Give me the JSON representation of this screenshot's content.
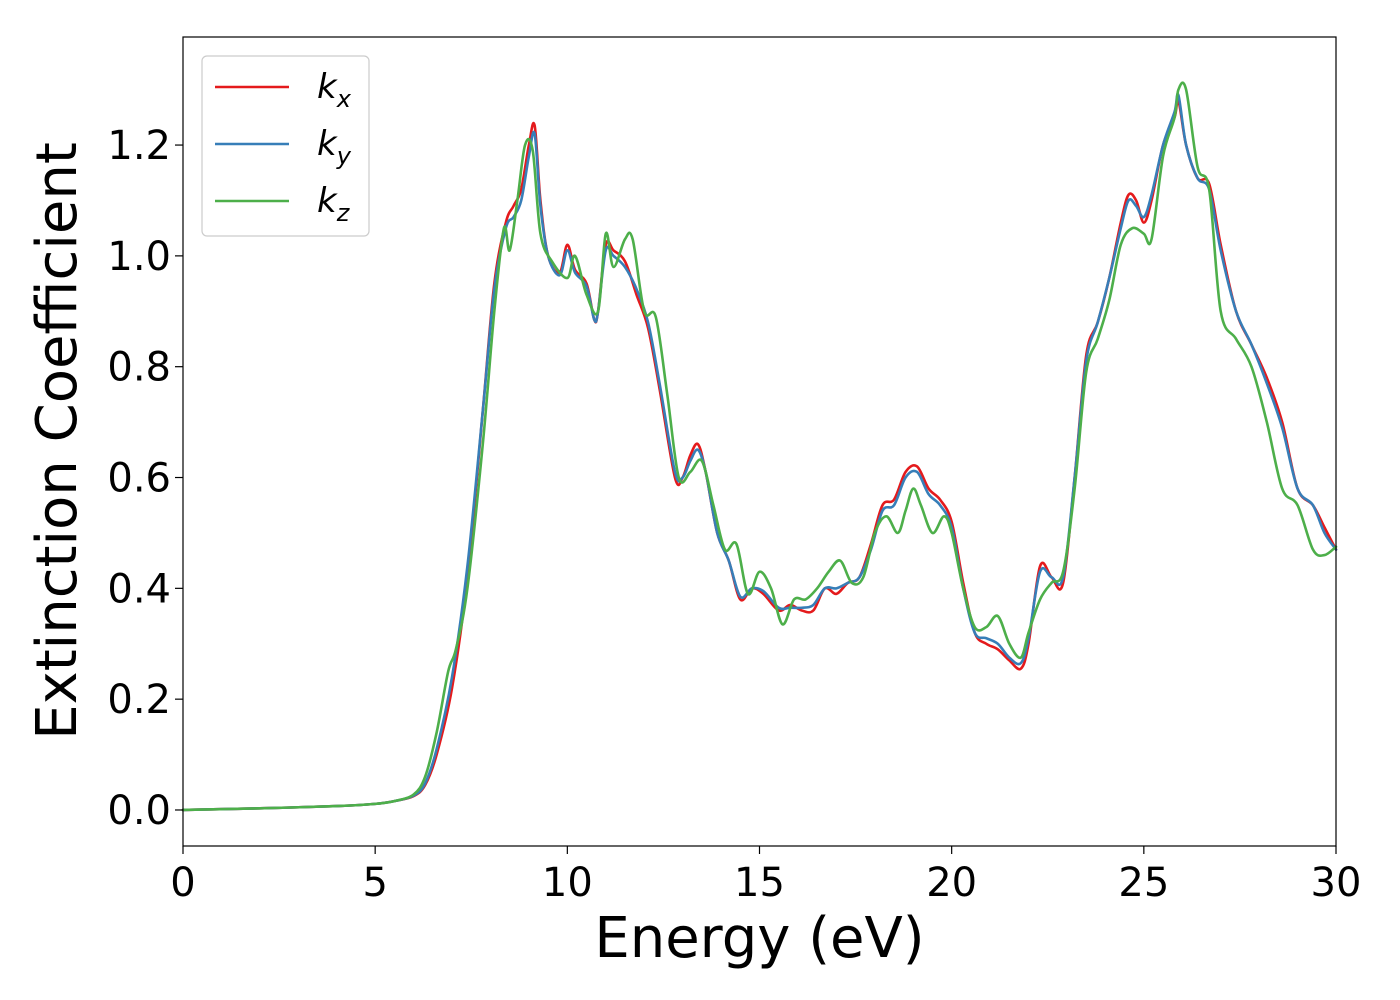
{
  "chart_data": {
    "type": "line",
    "title": "",
    "xlabel": "Energy (eV)",
    "ylabel": "Extinction Coefficient",
    "xlim": [
      0,
      30
    ],
    "ylim": [
      -0.065,
      1.395
    ],
    "xticks": [
      0,
      5,
      10,
      15,
      20,
      25,
      30
    ],
    "yticks": [
      0.0,
      0.2,
      0.4,
      0.6,
      0.8,
      1.0,
      1.2
    ],
    "xtick_labels": [
      "0",
      "5",
      "10",
      "15",
      "20",
      "25",
      "30"
    ],
    "ytick_labels": [
      "0.0",
      "0.2",
      "0.4",
      "0.6",
      "0.8",
      "1.0",
      "1.2"
    ],
    "grid": false,
    "legend_position": "top-left",
    "series": [
      {
        "name": "k_x",
        "label_base": "k",
        "label_sub": "x",
        "color": "#e41a1c",
        "x": [
          0,
          2,
          4,
          5,
          5.5,
          6,
          6.3,
          6.6,
          7.0,
          7.4,
          7.8,
          8.1,
          8.4,
          8.6,
          8.8,
          9.0,
          9.15,
          9.3,
          9.5,
          9.8,
          10.0,
          10.2,
          10.5,
          10.7,
          10.8,
          11.0,
          11.2,
          11.5,
          11.8,
          12.1,
          12.4,
          12.8,
          13.0,
          13.2,
          13.4,
          13.6,
          13.9,
          14.2,
          14.5,
          14.8,
          15.1,
          15.5,
          15.8,
          16.1,
          16.4,
          16.7,
          17.0,
          17.3,
          17.6,
          17.9,
          18.2,
          18.5,
          18.8,
          19.1,
          19.4,
          19.7,
          20.0,
          20.3,
          20.6,
          20.9,
          21.2,
          21.5,
          21.8,
          22.0,
          22.3,
          22.6,
          22.9,
          23.2,
          23.5,
          23.8,
          24.1,
          24.4,
          24.6,
          24.8,
          25.0,
          25.2,
          25.5,
          25.8,
          25.9,
          26.1,
          26.4,
          26.7,
          27.0,
          27.4,
          27.8,
          28.2,
          28.6,
          29.0,
          29.4,
          29.7,
          30.0
        ],
        "y": [
          0,
          0.003,
          0.007,
          0.011,
          0.016,
          0.025,
          0.045,
          0.1,
          0.22,
          0.42,
          0.72,
          0.95,
          1.06,
          1.09,
          1.12,
          1.2,
          1.235,
          1.1,
          1.0,
          0.97,
          1.02,
          0.975,
          0.95,
          0.885,
          0.9,
          1.02,
          1.01,
          0.99,
          0.93,
          0.87,
          0.76,
          0.6,
          0.6,
          0.64,
          0.66,
          0.61,
          0.5,
          0.45,
          0.38,
          0.4,
          0.39,
          0.36,
          0.37,
          0.36,
          0.36,
          0.4,
          0.39,
          0.41,
          0.42,
          0.48,
          0.55,
          0.56,
          0.61,
          0.62,
          0.58,
          0.56,
          0.52,
          0.41,
          0.32,
          0.3,
          0.29,
          0.27,
          0.255,
          0.3,
          0.44,
          0.42,
          0.41,
          0.6,
          0.82,
          0.88,
          0.96,
          1.06,
          1.11,
          1.1,
          1.06,
          1.1,
          1.2,
          1.25,
          1.28,
          1.2,
          1.14,
          1.13,
          1.02,
          0.9,
          0.84,
          0.78,
          0.7,
          0.58,
          0.55,
          0.51,
          0.47
        ]
      },
      {
        "name": "k_y",
        "label_base": "k",
        "label_sub": "y",
        "color": "#377eb8",
        "x": [
          0,
          2,
          4,
          5,
          5.5,
          6,
          6.3,
          6.6,
          7.0,
          7.4,
          7.8,
          8.1,
          8.4,
          8.6,
          8.8,
          9.0,
          9.15,
          9.3,
          9.5,
          9.8,
          10.0,
          10.2,
          10.5,
          10.7,
          10.8,
          11.0,
          11.2,
          11.5,
          11.8,
          12.1,
          12.4,
          12.8,
          13.0,
          13.2,
          13.4,
          13.6,
          13.9,
          14.2,
          14.5,
          14.8,
          15.1,
          15.5,
          15.8,
          16.1,
          16.4,
          16.7,
          17.0,
          17.3,
          17.6,
          17.9,
          18.2,
          18.5,
          18.8,
          19.1,
          19.4,
          19.7,
          20.0,
          20.3,
          20.6,
          20.9,
          21.2,
          21.5,
          21.8,
          22.0,
          22.3,
          22.6,
          22.9,
          23.2,
          23.5,
          23.8,
          24.1,
          24.4,
          24.6,
          24.8,
          25.0,
          25.2,
          25.5,
          25.8,
          25.9,
          26.1,
          26.4,
          26.7,
          27.0,
          27.4,
          27.8,
          28.2,
          28.6,
          29.0,
          29.4,
          29.7,
          30.0
        ],
        "y": [
          0,
          0.003,
          0.007,
          0.011,
          0.016,
          0.026,
          0.048,
          0.11,
          0.24,
          0.44,
          0.72,
          0.94,
          1.05,
          1.07,
          1.1,
          1.18,
          1.22,
          1.09,
          1.0,
          0.965,
          1.01,
          0.97,
          0.945,
          0.885,
          0.9,
          1.01,
          1.0,
          0.98,
          0.94,
          0.88,
          0.77,
          0.61,
          0.6,
          0.63,
          0.65,
          0.61,
          0.5,
          0.45,
          0.385,
          0.4,
          0.395,
          0.365,
          0.365,
          0.365,
          0.37,
          0.4,
          0.4,
          0.41,
          0.42,
          0.47,
          0.54,
          0.55,
          0.6,
          0.61,
          0.57,
          0.55,
          0.51,
          0.4,
          0.32,
          0.31,
          0.3,
          0.275,
          0.265,
          0.31,
          0.43,
          0.42,
          0.42,
          0.6,
          0.81,
          0.88,
          0.96,
          1.05,
          1.1,
          1.09,
          1.07,
          1.11,
          1.2,
          1.26,
          1.29,
          1.2,
          1.14,
          1.12,
          1.01,
          0.9,
          0.84,
          0.77,
          0.69,
          0.58,
          0.55,
          0.5,
          0.47
        ]
      },
      {
        "name": "k_z",
        "label_base": "k",
        "label_sub": "z",
        "color": "#4daf4a",
        "x": [
          0,
          2,
          4,
          5,
          5.5,
          6,
          6.3,
          6.6,
          6.9,
          7.1,
          7.4,
          7.8,
          8.1,
          8.35,
          8.5,
          8.7,
          8.9,
          9.1,
          9.3,
          9.6,
          10.0,
          10.2,
          10.5,
          10.8,
          11.0,
          11.2,
          11.5,
          11.7,
          12.0,
          12.3,
          12.6,
          12.9,
          13.2,
          13.5,
          13.8,
          14.1,
          14.4,
          14.7,
          15.0,
          15.3,
          15.6,
          15.9,
          16.2,
          16.5,
          16.8,
          17.1,
          17.4,
          17.7,
          18.0,
          18.3,
          18.6,
          18.8,
          19.0,
          19.2,
          19.5,
          19.8,
          20.0,
          20.3,
          20.6,
          20.9,
          21.2,
          21.5,
          21.8,
          22.0,
          22.3,
          22.6,
          22.9,
          23.2,
          23.5,
          23.8,
          24.1,
          24.4,
          24.7,
          25.0,
          25.2,
          25.5,
          25.8,
          25.9,
          26.1,
          26.4,
          26.7,
          27.0,
          27.4,
          27.8,
          28.2,
          28.6,
          29.0,
          29.4,
          29.7,
          30.0
        ],
        "y": [
          0,
          0.003,
          0.007,
          0.011,
          0.016,
          0.028,
          0.06,
          0.14,
          0.25,
          0.29,
          0.4,
          0.66,
          0.9,
          1.05,
          1.01,
          1.1,
          1.2,
          1.19,
          1.04,
          0.99,
          0.96,
          1.0,
          0.93,
          0.9,
          1.04,
          0.98,
          1.03,
          1.03,
          0.9,
          0.89,
          0.75,
          0.6,
          0.61,
          0.63,
          0.55,
          0.47,
          0.48,
          0.39,
          0.43,
          0.4,
          0.335,
          0.38,
          0.38,
          0.4,
          0.43,
          0.45,
          0.41,
          0.42,
          0.5,
          0.53,
          0.5,
          0.54,
          0.58,
          0.55,
          0.5,
          0.53,
          0.5,
          0.4,
          0.33,
          0.33,
          0.35,
          0.3,
          0.275,
          0.32,
          0.38,
          0.41,
          0.43,
          0.58,
          0.79,
          0.85,
          0.92,
          1.02,
          1.05,
          1.04,
          1.03,
          1.18,
          1.25,
          1.3,
          1.3,
          1.16,
          1.12,
          0.9,
          0.85,
          0.8,
          0.7,
          0.58,
          0.55,
          0.47,
          0.46,
          0.475
        ]
      }
    ]
  }
}
